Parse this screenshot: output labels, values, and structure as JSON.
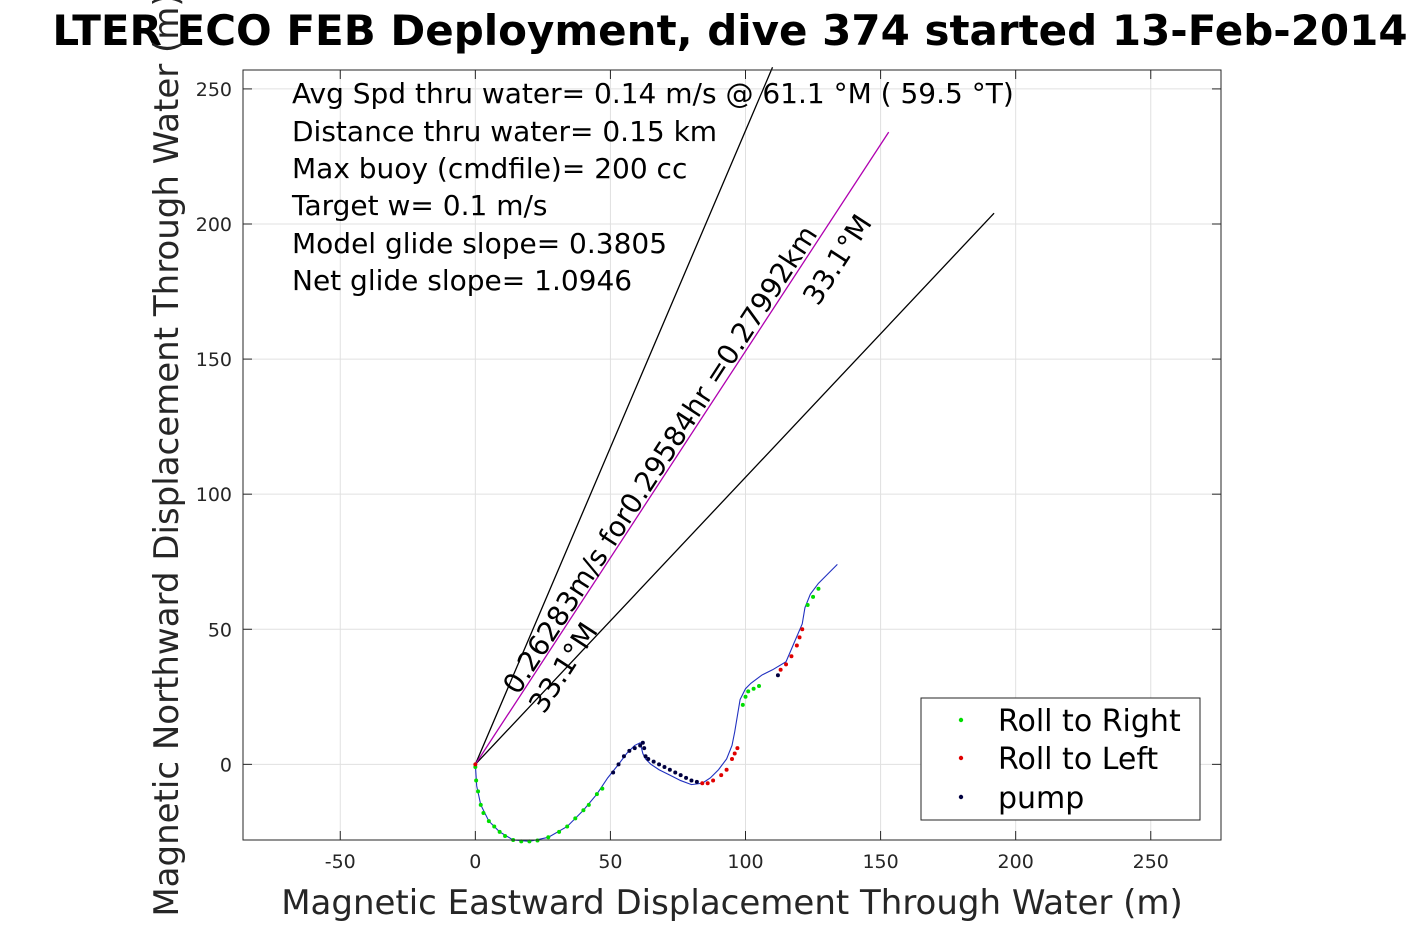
{
  "chart_data": {
    "type": "line",
    "title": "LTER ECO FEB Deployment, dive 374 started 13-Feb-2014",
    "xlabel": "Magnetic Eastward Displacement Through Water (m)",
    "ylabel": "Magnetic Northward Displacement Through Water (m)",
    "xlim": [
      -86,
      276
    ],
    "ylim": [
      -28,
      257
    ],
    "xticks": [
      -50,
      0,
      50,
      100,
      150,
      200,
      250
    ],
    "yticks": [
      0,
      50,
      100,
      150,
      200,
      250
    ],
    "grid": true,
    "legend": {
      "placement": "bottom-right",
      "entries": [
        {
          "label": "Roll to Right",
          "color": "#00e000"
        },
        {
          "label": "Roll to Left",
          "color": "#e00000"
        },
        {
          "label": "pump",
          "color": "#000040"
        }
      ]
    },
    "info_lines": [
      "Avg Spd thru water=  0.14 m/s @  61.1 °M ( 59.5 °T)",
      "Distance thru water=  0.15 km",
      "Max buoy (cmdfile)= 200 cc",
      "Target w= 0.1 m/s",
      "Model glide slope= 0.3805",
      "Net glide slope= 1.0946"
    ],
    "annotations": {
      "current_label": "0.26283m/s for0.29584hr =0.27992km",
      "heading_label_near": "33.1°M",
      "heading_label_far": "33.1°M"
    },
    "lines": [
      {
        "name": "wedge-upper",
        "color": "#000000",
        "x": [
          0,
          110
        ],
        "y": [
          0,
          258
        ]
      },
      {
        "name": "wedge-lower",
        "color": "#000000",
        "x": [
          0,
          192
        ],
        "y": [
          0,
          204
        ]
      },
      {
        "name": "current",
        "color": "#b000b0",
        "x": [
          0,
          153
        ],
        "y": [
          0,
          234
        ]
      }
    ],
    "track": {
      "color": "#2030c0",
      "x": [
        0,
        0.5,
        2,
        5,
        9,
        14,
        20,
        27,
        34,
        40,
        45,
        49,
        53,
        56,
        59,
        61,
        62,
        63,
        65,
        68,
        72,
        76,
        80,
        84,
        87,
        90,
        93,
        95,
        96,
        97,
        98,
        100,
        102,
        106,
        110,
        115,
        118,
        121,
        122,
        124,
        127,
        131,
        134
      ],
      "y": [
        0,
        -8,
        -15,
        -21,
        -25,
        -28,
        -28.5,
        -27,
        -23,
        -17,
        -11,
        -5,
        0,
        4,
        7,
        8,
        4,
        2,
        0,
        -2,
        -4,
        -6,
        -7.5,
        -7,
        -5,
        -2,
        2,
        7,
        12,
        18,
        24,
        28,
        30,
        33,
        35,
        38,
        45,
        52,
        58,
        63,
        67,
        71,
        74
      ]
    },
    "point_series": [
      {
        "name": "Roll to Right",
        "color": "#00dd00",
        "x": [
          0,
          0.3,
          1,
          2,
          3,
          5,
          7,
          9,
          11,
          14,
          17,
          20,
          23,
          27,
          31,
          34,
          37,
          40,
          42,
          45,
          47,
          99,
          100,
          101,
          103,
          105,
          123,
          125,
          127
        ],
        "y": [
          -1,
          -6,
          -10,
          -15,
          -18,
          -21,
          -23,
          -25,
          -26.5,
          -28,
          -28.5,
          -28.5,
          -28.2,
          -27,
          -25,
          -23,
          -20,
          -17,
          -15,
          -11,
          -9,
          22,
          25,
          27,
          28,
          29,
          59,
          62,
          65
        ]
      },
      {
        "name": "Roll to Left",
        "color": "#e00000",
        "x": [
          0,
          84,
          86,
          88,
          91,
          93,
          95,
          96,
          97,
          113,
          115,
          117,
          119,
          120,
          121
        ],
        "y": [
          0,
          -7,
          -7,
          -6,
          -4,
          -2,
          2,
          4,
          6,
          35,
          37,
          40,
          44,
          47,
          50
        ]
      },
      {
        "name": "pump",
        "color": "#000040",
        "x": [
          51,
          53,
          55,
          57,
          59,
          61,
          62,
          62.5,
          63,
          64,
          66,
          68,
          70,
          72,
          74,
          76,
          78,
          80,
          82,
          112
        ],
        "y": [
          -3,
          0,
          3,
          5,
          6,
          7,
          8,
          6,
          3,
          2,
          1,
          0,
          -1,
          -2,
          -3,
          -4,
          -5,
          -6,
          -6.5,
          33
        ]
      }
    ]
  }
}
